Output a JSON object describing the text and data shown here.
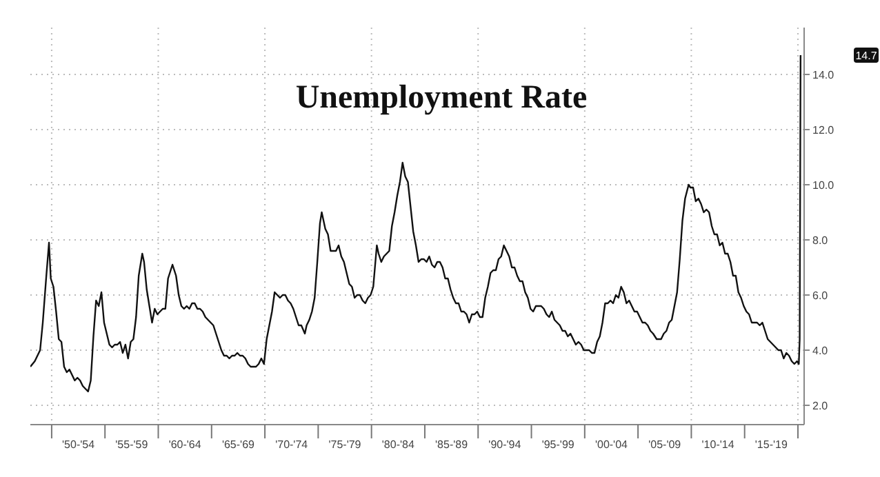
{
  "chart_data": {
    "type": "line",
    "title": "Unemployment Rate",
    "x": [
      "1948-01",
      "1948-06",
      "1948-12",
      "1949-03",
      "1949-07",
      "1949-10",
      "1949-12",
      "1950-03",
      "1950-06",
      "1950-09",
      "1950-12",
      "1951-03",
      "1951-06",
      "1951-09",
      "1951-12",
      "1952-03",
      "1952-06",
      "1952-09",
      "1952-12",
      "1953-03",
      "1953-06",
      "1953-09",
      "1953-12",
      "1954-03",
      "1954-06",
      "1954-09",
      "1954-12",
      "1955-03",
      "1955-06",
      "1955-09",
      "1955-12",
      "1956-03",
      "1956-06",
      "1956-09",
      "1956-12",
      "1957-03",
      "1957-06",
      "1957-09",
      "1957-12",
      "1958-03",
      "1958-07",
      "1958-09",
      "1958-12",
      "1959-03",
      "1959-06",
      "1959-09",
      "1959-12",
      "1960-03",
      "1960-06",
      "1960-09",
      "1960-12",
      "1961-03",
      "1961-05",
      "1961-09",
      "1961-12",
      "1962-03",
      "1962-06",
      "1962-09",
      "1962-12",
      "1963-03",
      "1963-06",
      "1963-09",
      "1963-12",
      "1964-03",
      "1964-06",
      "1964-09",
      "1964-12",
      "1965-03",
      "1965-06",
      "1965-09",
      "1965-12",
      "1966-03",
      "1966-06",
      "1966-09",
      "1966-12",
      "1967-03",
      "1967-06",
      "1967-09",
      "1967-12",
      "1968-03",
      "1968-06",
      "1968-09",
      "1968-12",
      "1969-03",
      "1969-06",
      "1969-09",
      "1969-12",
      "1970-03",
      "1970-06",
      "1970-09",
      "1970-12",
      "1971-03",
      "1971-06",
      "1971-09",
      "1971-12",
      "1972-03",
      "1972-06",
      "1972-09",
      "1972-12",
      "1973-03",
      "1973-06",
      "1973-10",
      "1973-12",
      "1974-03",
      "1974-06",
      "1974-09",
      "1974-12",
      "1975-03",
      "1975-05",
      "1975-09",
      "1975-12",
      "1976-03",
      "1976-06",
      "1976-09",
      "1976-12",
      "1977-03",
      "1977-06",
      "1977-09",
      "1977-12",
      "1978-03",
      "1978-06",
      "1978-09",
      "1978-12",
      "1979-03",
      "1979-06",
      "1979-09",
      "1979-12",
      "1980-03",
      "1980-07",
      "1980-09",
      "1980-12",
      "1981-03",
      "1981-06",
      "1981-09",
      "1981-12",
      "1982-03",
      "1982-06",
      "1982-09",
      "1982-12",
      "1983-03",
      "1983-06",
      "1983-09",
      "1983-12",
      "1984-03",
      "1984-06",
      "1984-09",
      "1984-12",
      "1985-03",
      "1985-06",
      "1985-09",
      "1985-12",
      "1986-03",
      "1986-06",
      "1986-09",
      "1986-12",
      "1987-03",
      "1987-06",
      "1987-09",
      "1987-12",
      "1988-03",
      "1988-06",
      "1988-09",
      "1988-12",
      "1989-03",
      "1989-06",
      "1989-09",
      "1989-12",
      "1990-03",
      "1990-06",
      "1990-09",
      "1990-12",
      "1991-03",
      "1991-06",
      "1991-09",
      "1991-12",
      "1992-03",
      "1992-06",
      "1992-09",
      "1992-12",
      "1993-03",
      "1993-06",
      "1993-09",
      "1993-12",
      "1994-03",
      "1994-06",
      "1994-09",
      "1994-12",
      "1995-03",
      "1995-06",
      "1995-09",
      "1995-12",
      "1996-03",
      "1996-06",
      "1996-09",
      "1996-12",
      "1997-03",
      "1997-06",
      "1997-09",
      "1997-12",
      "1998-03",
      "1998-06",
      "1998-09",
      "1998-12",
      "1999-03",
      "1999-06",
      "1999-09",
      "1999-12",
      "2000-03",
      "2000-06",
      "2000-09",
      "2000-12",
      "2001-03",
      "2001-06",
      "2001-09",
      "2001-12",
      "2002-03",
      "2002-06",
      "2002-09",
      "2002-12",
      "2003-03",
      "2003-06",
      "2003-09",
      "2003-12",
      "2004-03",
      "2004-06",
      "2004-09",
      "2004-12",
      "2005-03",
      "2005-06",
      "2005-09",
      "2005-12",
      "2006-03",
      "2006-06",
      "2006-10",
      "2006-12",
      "2007-03",
      "2007-06",
      "2007-09",
      "2007-12",
      "2008-03",
      "2008-06",
      "2008-09",
      "2008-12",
      "2009-03",
      "2009-06",
      "2009-10",
      "2009-12",
      "2010-03",
      "2010-06",
      "2010-09",
      "2010-12",
      "2011-03",
      "2011-06",
      "2011-09",
      "2011-12",
      "2012-03",
      "2012-06",
      "2012-09",
      "2012-12",
      "2013-03",
      "2013-06",
      "2013-09",
      "2013-12",
      "2014-03",
      "2014-06",
      "2014-09",
      "2014-12",
      "2015-03",
      "2015-06",
      "2015-09",
      "2015-12",
      "2016-03",
      "2016-06",
      "2016-09",
      "2016-12",
      "2017-03",
      "2017-06",
      "2017-09",
      "2017-12",
      "2018-03",
      "2018-06",
      "2018-09",
      "2018-12",
      "2019-03",
      "2019-06",
      "2019-09",
      "2019-12",
      "2020-02",
      "2020-03",
      "2020-04"
    ],
    "series": [
      {
        "color": "#111111",
        "values": [
          3.4,
          3.6,
          4.0,
          5.0,
          6.7,
          7.9,
          6.6,
          6.3,
          5.4,
          4.4,
          4.3,
          3.4,
          3.2,
          3.3,
          3.1,
          2.9,
          3.0,
          2.9,
          2.7,
          2.6,
          2.5,
          2.9,
          4.5,
          5.8,
          5.6,
          6.1,
          5.0,
          4.6,
          4.2,
          4.1,
          4.2,
          4.2,
          4.3,
          3.9,
          4.2,
          3.7,
          4.3,
          4.4,
          5.2,
          6.7,
          7.5,
          7.2,
          6.2,
          5.6,
          5.0,
          5.5,
          5.3,
          5.4,
          5.5,
          5.5,
          6.6,
          6.9,
          7.1,
          6.7,
          6.0,
          5.6,
          5.5,
          5.6,
          5.5,
          5.7,
          5.7,
          5.5,
          5.5,
          5.4,
          5.2,
          5.1,
          5.0,
          4.9,
          4.6,
          4.3,
          4.0,
          3.8,
          3.8,
          3.7,
          3.8,
          3.8,
          3.9,
          3.8,
          3.8,
          3.7,
          3.5,
          3.4,
          3.4,
          3.4,
          3.5,
          3.7,
          3.5,
          4.4,
          4.9,
          5.4,
          6.1,
          6.0,
          5.9,
          6.0,
          6.0,
          5.8,
          5.7,
          5.5,
          5.2,
          4.9,
          4.9,
          4.6,
          4.9,
          5.1,
          5.4,
          5.9,
          7.2,
          8.6,
          9.0,
          8.4,
          8.2,
          7.6,
          7.6,
          7.6,
          7.8,
          7.4,
          7.2,
          6.8,
          6.4,
          6.3,
          5.9,
          6.0,
          6.0,
          5.8,
          5.7,
          5.9,
          6.0,
          6.3,
          7.8,
          7.5,
          7.2,
          7.4,
          7.5,
          7.6,
          8.5,
          9.0,
          9.6,
          10.1,
          10.8,
          10.3,
          10.1,
          9.2,
          8.3,
          7.8,
          7.2,
          7.3,
          7.3,
          7.2,
          7.4,
          7.1,
          7.0,
          7.2,
          7.2,
          7.0,
          6.6,
          6.6,
          6.2,
          5.9,
          5.7,
          5.7,
          5.4,
          5.4,
          5.3,
          5.0,
          5.3,
          5.3,
          5.4,
          5.2,
          5.2,
          5.9,
          6.3,
          6.8,
          6.9,
          6.9,
          7.3,
          7.4,
          7.8,
          7.6,
          7.4,
          7.0,
          7.0,
          6.7,
          6.5,
          6.5,
          6.1,
          5.9,
          5.5,
          5.4,
          5.6,
          5.6,
          5.6,
          5.5,
          5.3,
          5.2,
          5.4,
          5.1,
          5.0,
          4.9,
          4.7,
          4.7,
          4.5,
          4.6,
          4.4,
          4.2,
          4.3,
          4.2,
          4.0,
          4.0,
          4.0,
          3.9,
          3.9,
          4.3,
          4.5,
          5.0,
          5.7,
          5.7,
          5.8,
          5.7,
          6.0,
          5.9,
          6.3,
          6.1,
          5.7,
          5.8,
          5.6,
          5.4,
          5.4,
          5.2,
          5.0,
          5.0,
          4.9,
          4.7,
          4.6,
          4.4,
          4.4,
          4.4,
          4.6,
          4.7,
          5.0,
          5.1,
          5.6,
          6.1,
          7.3,
          8.7,
          9.5,
          10.0,
          9.9,
          9.9,
          9.4,
          9.5,
          9.3,
          9.0,
          9.1,
          9.0,
          8.5,
          8.2,
          8.2,
          7.8,
          7.9,
          7.5,
          7.5,
          7.2,
          6.7,
          6.7,
          6.1,
          5.9,
          5.6,
          5.4,
          5.3,
          5.0,
          5.0,
          5.0,
          4.9,
          5.0,
          4.7,
          4.4,
          4.3,
          4.2,
          4.1,
          4.0,
          4.0,
          3.7,
          3.9,
          3.8,
          3.6,
          3.5,
          3.6,
          3.5,
          4.4,
          14.7
        ]
      }
    ],
    "xlim": [
      "1948-01",
      "2020-08"
    ],
    "xticks": [
      {
        "value": "1950-01",
        "label": null
      },
      {
        "value": "1952-07",
        "label": "'50-'54"
      },
      {
        "value": "1955-01",
        "label": null
      },
      {
        "value": "1957-07",
        "label": "'55-'59"
      },
      {
        "value": "1960-01",
        "label": null
      },
      {
        "value": "1962-07",
        "label": "'60-'64"
      },
      {
        "value": "1965-01",
        "label": null
      },
      {
        "value": "1967-07",
        "label": "'65-'69"
      },
      {
        "value": "1970-01",
        "label": null
      },
      {
        "value": "1972-07",
        "label": "'70-'74"
      },
      {
        "value": "1975-01",
        "label": null
      },
      {
        "value": "1977-07",
        "label": "'75-'79"
      },
      {
        "value": "1980-01",
        "label": null
      },
      {
        "value": "1982-07",
        "label": "'80-'84"
      },
      {
        "value": "1985-01",
        "label": null
      },
      {
        "value": "1987-07",
        "label": "'85-'89"
      },
      {
        "value": "1990-01",
        "label": null
      },
      {
        "value": "1992-07",
        "label": "'90-'94"
      },
      {
        "value": "1995-01",
        "label": null
      },
      {
        "value": "1997-07",
        "label": "'95-'99"
      },
      {
        "value": "2000-01",
        "label": null
      },
      {
        "value": "2002-07",
        "label": "'00-'04"
      },
      {
        "value": "2005-01",
        "label": null
      },
      {
        "value": "2007-07",
        "label": "'05-'09"
      },
      {
        "value": "2010-01",
        "label": null
      },
      {
        "value": "2012-07",
        "label": "'10-'14"
      },
      {
        "value": "2015-01",
        "label": null
      },
      {
        "value": "2017-07",
        "label": "'15-'19"
      },
      {
        "value": "2020-01",
        "label": null
      }
    ],
    "ylim": [
      1.3,
      15.7
    ],
    "yticks": [
      {
        "value": 2,
        "label": "2.0"
      },
      {
        "value": 4,
        "label": "4.0"
      },
      {
        "value": 6,
        "label": "6.0"
      },
      {
        "value": 8,
        "label": "8.0"
      },
      {
        "value": 10,
        "label": "10.0"
      },
      {
        "value": 12,
        "label": "12.0"
      },
      {
        "value": 14,
        "label": "14.0"
      }
    ],
    "annotations": [
      "14.7"
    ],
    "grid": true,
    "marker": "none",
    "line_style": "solid"
  }
}
